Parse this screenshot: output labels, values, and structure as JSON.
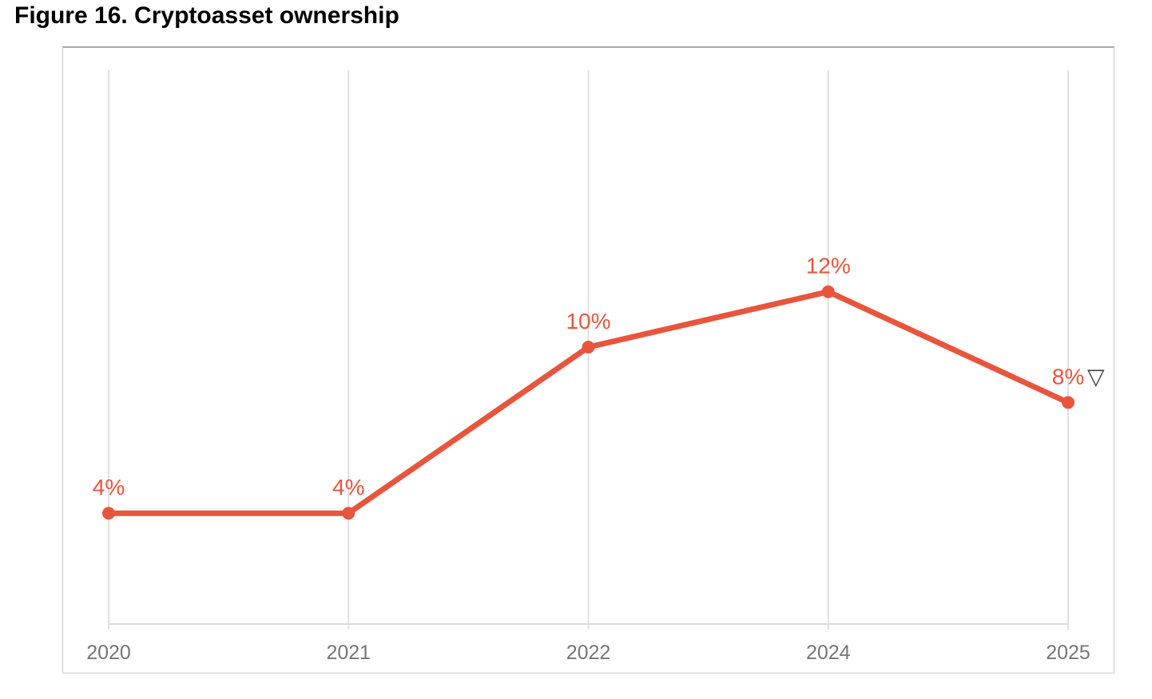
{
  "page": {
    "title": "Figure 16. Cryptoasset ownership"
  },
  "chart_data": {
    "type": "line",
    "title": "Figure 16. Cryptoasset ownership",
    "categories": [
      "2020",
      "2021",
      "2022",
      "2024",
      "2025"
    ],
    "series": [
      {
        "name": "Cryptoasset ownership",
        "values": [
          4,
          4,
          10,
          12,
          8
        ],
        "labels": [
          "4%",
          "4%",
          "10%",
          "12%",
          "8%"
        ]
      }
    ],
    "last_point_indicator": "▽",
    "xlabel": "",
    "ylabel": "",
    "ylim": [
      0,
      20
    ],
    "grid": "vertical-only",
    "legend": "none",
    "colors": {
      "line": "#e8553d",
      "marker": "#e8553d",
      "value_label": "#e8553d",
      "indicator": "#3d3d3d",
      "gridline": "#e0e0e0",
      "axis_line": "#d9d9d9",
      "tick_label": "#757575"
    }
  }
}
